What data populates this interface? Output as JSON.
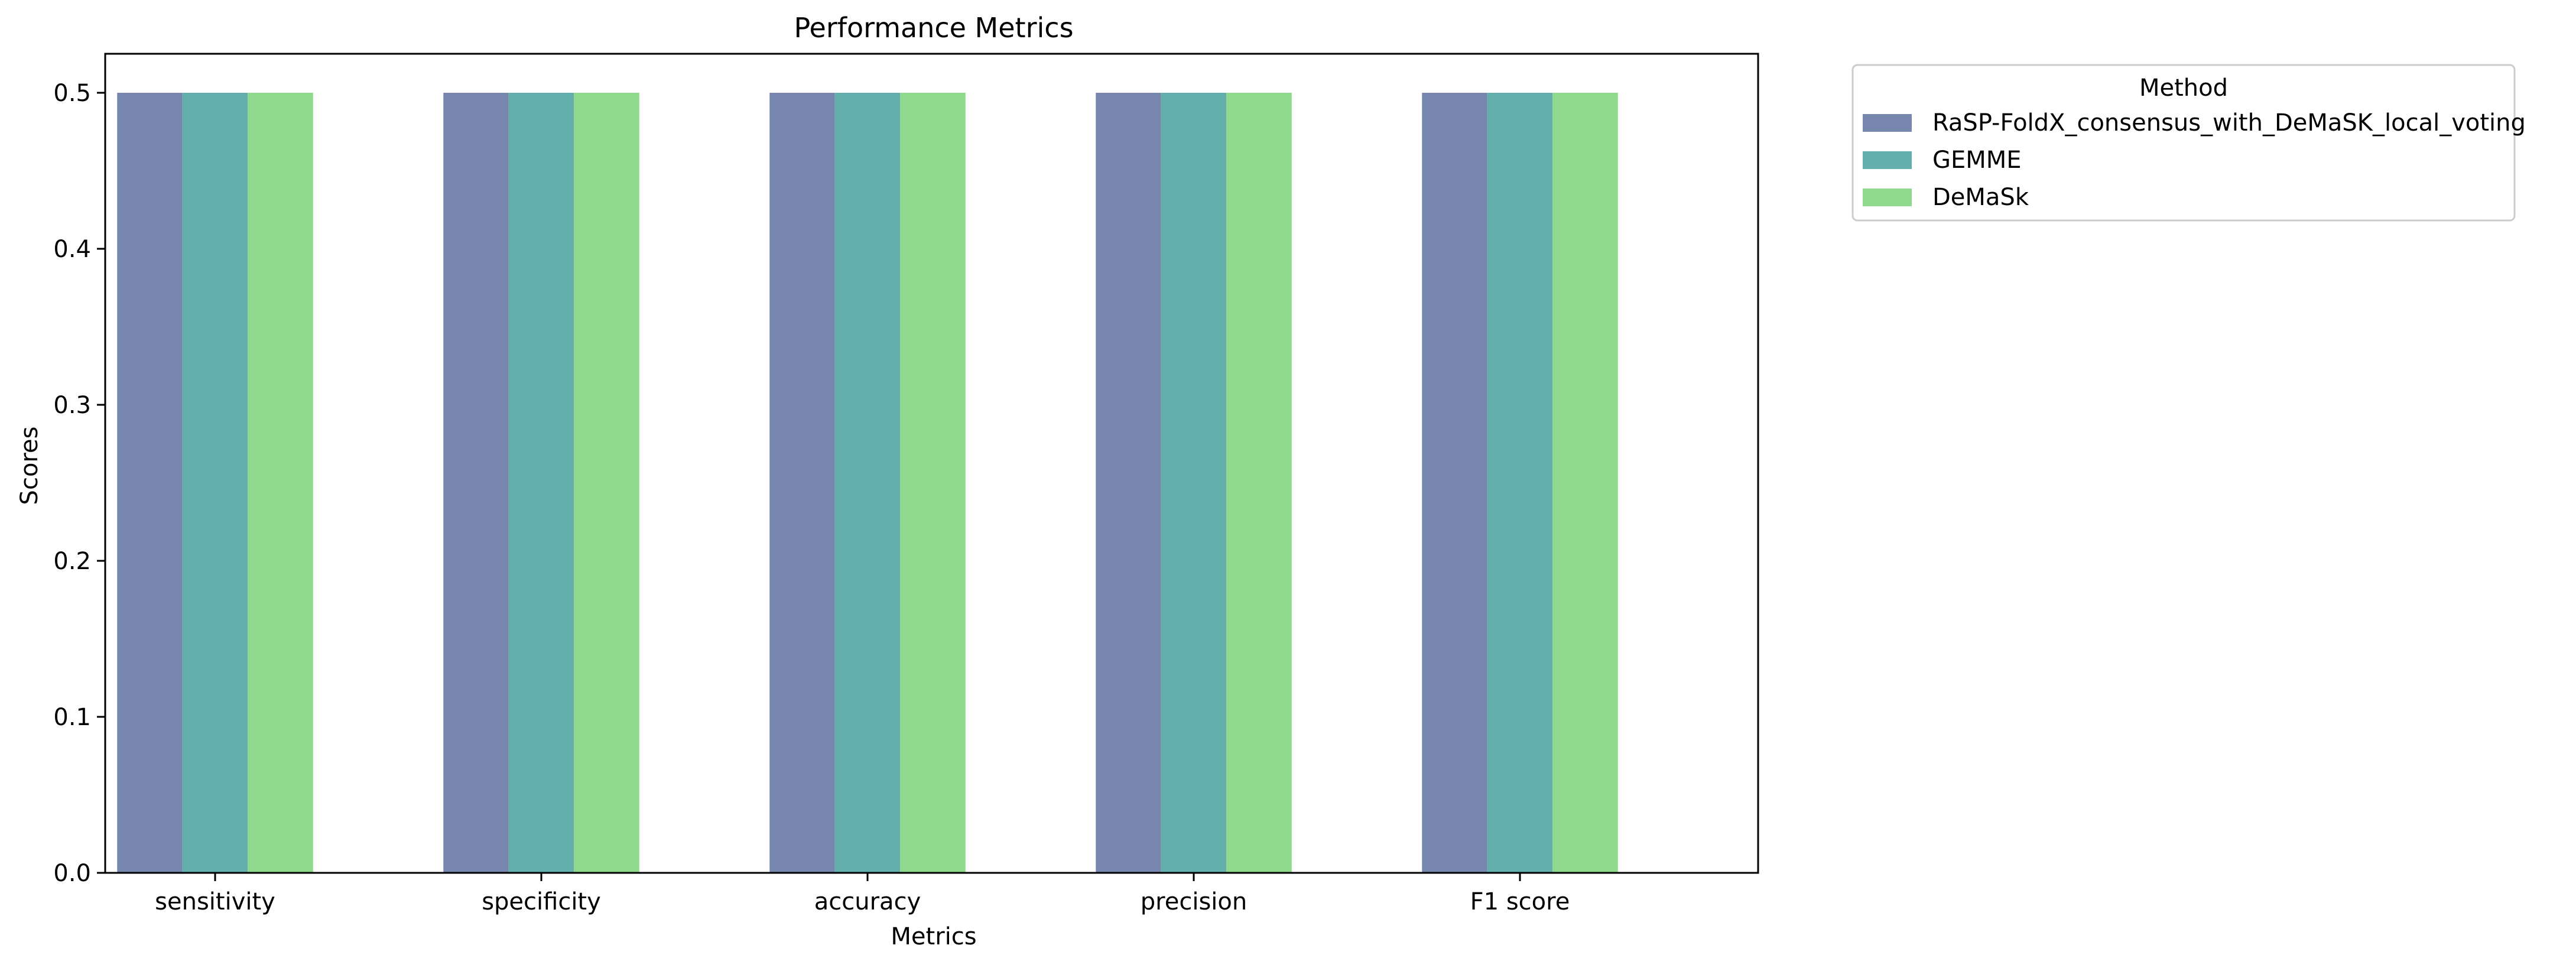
{
  "chart_data": {
    "type": "bar",
    "title": "Performance Metrics",
    "xlabel": "Metrics",
    "ylabel": "Scores",
    "categories": [
      "sensitivity",
      "specificity",
      "accuracy",
      "precision",
      "F1 score"
    ],
    "series": [
      {
        "name": "RaSP-FoldX_consensus_with_DeMaSK_local_voting",
        "values": [
          0.5,
          0.5,
          0.5,
          0.5,
          0.5
        ],
        "color": "#7786ad"
      },
      {
        "name": "GEMME",
        "values": [
          0.5,
          0.5,
          0.5,
          0.5,
          0.5
        ],
        "color": "#62afad"
      },
      {
        "name": "DeMaSk",
        "values": [
          0.5,
          0.5,
          0.5,
          0.5,
          0.5
        ],
        "color": "#8fd98d"
      }
    ],
    "ylim": [
      0,
      0.525
    ],
    "yticks": [
      "0.0",
      "0.1",
      "0.2",
      "0.3",
      "0.4",
      "0.5"
    ],
    "legend": {
      "title": "Method",
      "placement": "outside-upper-right"
    },
    "grid": false
  }
}
